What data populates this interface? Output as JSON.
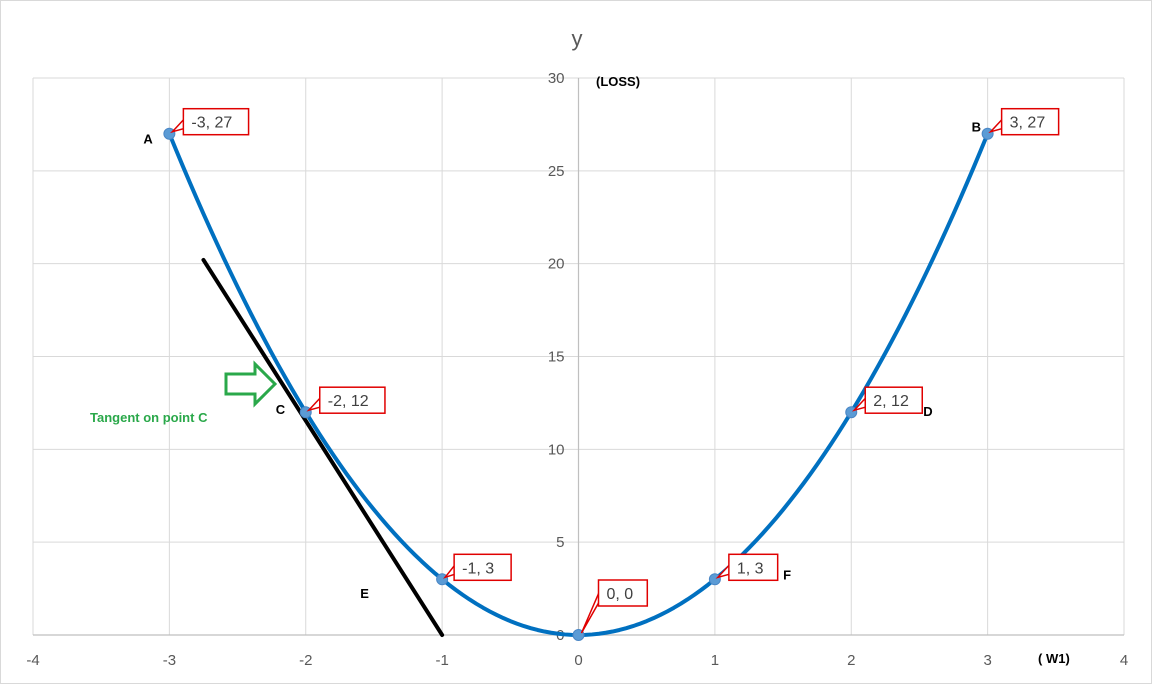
{
  "chart_data": {
    "type": "line",
    "ylabel": "y",
    "y_note": "(LOSS)",
    "x_note": "( W1)",
    "xlim": [
      -4,
      4
    ],
    "ylim": [
      0,
      30
    ],
    "x_ticks": [
      "-4",
      "-3",
      "-2",
      "-1",
      "0",
      "1",
      "2",
      "3",
      "4"
    ],
    "y_ticks": [
      "0",
      "5",
      "10",
      "15",
      "20",
      "25",
      "30"
    ],
    "grid": true,
    "series": [
      {
        "curve": "y = 3x^2",
        "color": "#0070c0",
        "x": [
          -3,
          -2,
          -1,
          0,
          1,
          2,
          3
        ],
        "y": [
          27,
          12,
          3,
          0,
          3,
          12,
          27
        ],
        "point_labels": [
          "-3, 27",
          "-2, 12",
          "-1, 3",
          "0, 0",
          "1, 3",
          "2, 12",
          "3, 27"
        ]
      }
    ],
    "point_letters": [
      {
        "letter": "A",
        "x": -3,
        "y": 27
      },
      {
        "letter": "B",
        "x": 3,
        "y": 27
      },
      {
        "letter": "C",
        "x": -2,
        "y": 12
      },
      {
        "letter": "D",
        "x": 2,
        "y": 12
      },
      {
        "letter": "E",
        "x": -1.6,
        "y": 2
      },
      {
        "letter": "F",
        "x": 1.5,
        "y": 3
      }
    ],
    "tangent": {
      "color": "#000000",
      "from": [
        -2.75,
        20.2
      ],
      "to": [
        -1.0,
        0
      ]
    },
    "annotation": {
      "text": "Tangent on point C",
      "color": "#2aa84a"
    }
  },
  "colors": {
    "grid": "#d9d9d9",
    "axis": "#bfbfbf",
    "marker": "#5b9bd5",
    "callout_border": "#e00000"
  }
}
